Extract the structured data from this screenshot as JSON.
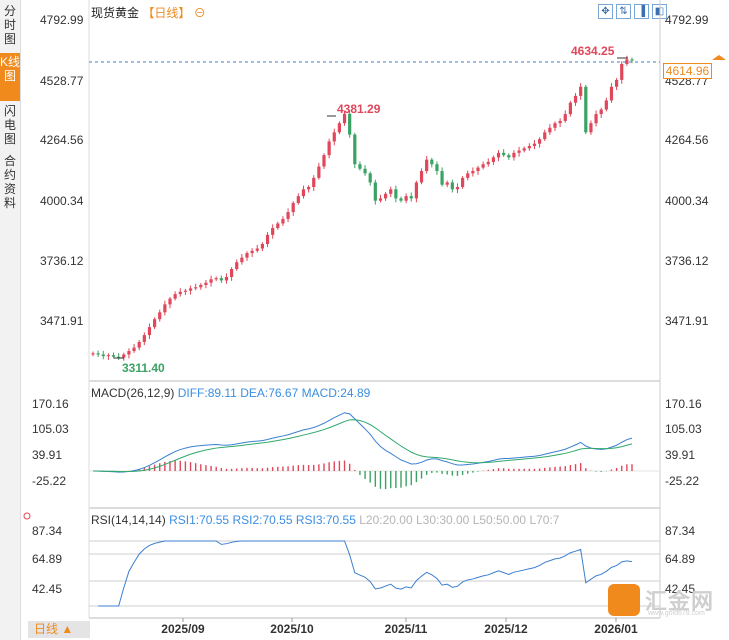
{
  "sidebar": {
    "tabs": [
      "分时图",
      "K线图",
      "闪电图",
      "合约资料"
    ],
    "active_index": 1
  },
  "header": {
    "title": "现货黄金",
    "period": "【日线】",
    "refresh_glyph": "⊖"
  },
  "controls": [
    "✥",
    "⇅",
    "▐",
    "◧"
  ],
  "price_axis": {
    "labels": [
      "4792.99",
      "4528.77",
      "4264.56",
      "4000.34",
      "3736.12",
      "3471.91"
    ]
  },
  "last_price": "4614.96",
  "annotations": {
    "high1": "4381.29",
    "high2": "4634.25",
    "low": "3311.40"
  },
  "macd": {
    "label": "MACD(26,12,9)",
    "diff": "DIFF:89.11",
    "dea": "DEA:76.67",
    "macd": "MACD:24.89",
    "axis_labels": [
      "170.16",
      "105.03",
      "39.91",
      "-25.22"
    ]
  },
  "rsi": {
    "label": "RSI(14,14,14)",
    "rsi1": "RSI1:70.55",
    "rsi2": "RSI2:70.55",
    "rsi3": "RSI3:70.55",
    "l20": "L20:20.00",
    "l30": "L30:30.00",
    "l50": "L50:50.00",
    "l70": "L70:7",
    "axis_labels": [
      "87.34",
      "64.89",
      "42.45"
    ]
  },
  "x_axis": {
    "labels": [
      "2025/09",
      "2025/10",
      "2025/11",
      "2025/12",
      "2026/01"
    ]
  },
  "period_button": "日线 ▲",
  "logo": {
    "text": "汇金网",
    "url": "www.gold678.com"
  },
  "colors": {
    "up": "#e0475a",
    "down": "#3aa364",
    "accent": "#f08a1c",
    "diff": "#3b7fd1",
    "dea": "#2fa96b",
    "grid": "#dddddd"
  },
  "chart_data": {
    "type": "candlestick",
    "title": "现货黄金 日线",
    "yrange": [
      3311.4,
      4792.99
    ],
    "x_labels": [
      "2025/09",
      "2025/10",
      "2025/11",
      "2025/12",
      "2026/01"
    ],
    "close": [
      3330,
      3325,
      3318,
      3322,
      3315,
      3311.4,
      3325,
      3340,
      3355,
      3380,
      3410,
      3445,
      3480,
      3510,
      3545,
      3570,
      3590,
      3600,
      3605,
      3615,
      3620,
      3630,
      3640,
      3655,
      3660,
      3650,
      3665,
      3700,
      3730,
      3750,
      3770,
      3780,
      3790,
      3810,
      3850,
      3880,
      3900,
      3920,
      3950,
      3990,
      4020,
      4050,
      4060,
      4100,
      4150,
      4200,
      4260,
      4300,
      4340,
      4381.29,
      4290,
      4160,
      4140,
      4120,
      4080,
      4000,
      4010,
      4030,
      4050,
      4010,
      4000,
      4020,
      4010,
      4080,
      4130,
      4180,
      4160,
      4130,
      4070,
      4080,
      4050,
      4060,
      4100,
      4120,
      4130,
      4145,
      4160,
      4170,
      4190,
      4210,
      4200,
      4190,
      4210,
      4220,
      4230,
      4240,
      4250,
      4270,
      4300,
      4320,
      4340,
      4350,
      4380,
      4430,
      4460,
      4500,
      4300,
      4340,
      4380,
      4400,
      4440,
      4500,
      4530,
      4600,
      4620,
      4614.96
    ],
    "candle_open": [
      3325,
      3330,
      3325,
      3318,
      3322,
      3315,
      3311.4,
      3325,
      3340,
      3355,
      3380,
      3410,
      3445,
      3480,
      3510,
      3545,
      3570,
      3590,
      3600,
      3605,
      3615,
      3620,
      3630,
      3640,
      3655,
      3660,
      3650,
      3665,
      3700,
      3730,
      3750,
      3770,
      3780,
      3790,
      3810,
      3850,
      3880,
      3900,
      3920,
      3950,
      3990,
      4020,
      4050,
      4060,
      4100,
      4150,
      4200,
      4260,
      4300,
      4340,
      4381.29,
      4290,
      4160,
      4140,
      4120,
      4080,
      4000,
      4010,
      4030,
      4050,
      4010,
      4000,
      4020,
      4010,
      4080,
      4130,
      4180,
      4160,
      4130,
      4070,
      4080,
      4050,
      4060,
      4100,
      4120,
      4130,
      4145,
      4160,
      4170,
      4190,
      4210,
      4200,
      4190,
      4210,
      4220,
      4230,
      4240,
      4250,
      4270,
      4300,
      4320,
      4340,
      4350,
      4380,
      4430,
      4460,
      4500,
      4300,
      4340,
      4380,
      4400,
      4440,
      4500,
      4530,
      4600,
      4620
    ],
    "macd": {
      "diff": 89.11,
      "dea": 76.67,
      "macd": 24.89,
      "yrange": [
        -25.22,
        170.16
      ]
    },
    "rsi": {
      "rsi1": 70.55,
      "rsi2": 70.55,
      "rsi3": 70.55,
      "yrange": [
        42.45,
        87.34
      ]
    }
  }
}
